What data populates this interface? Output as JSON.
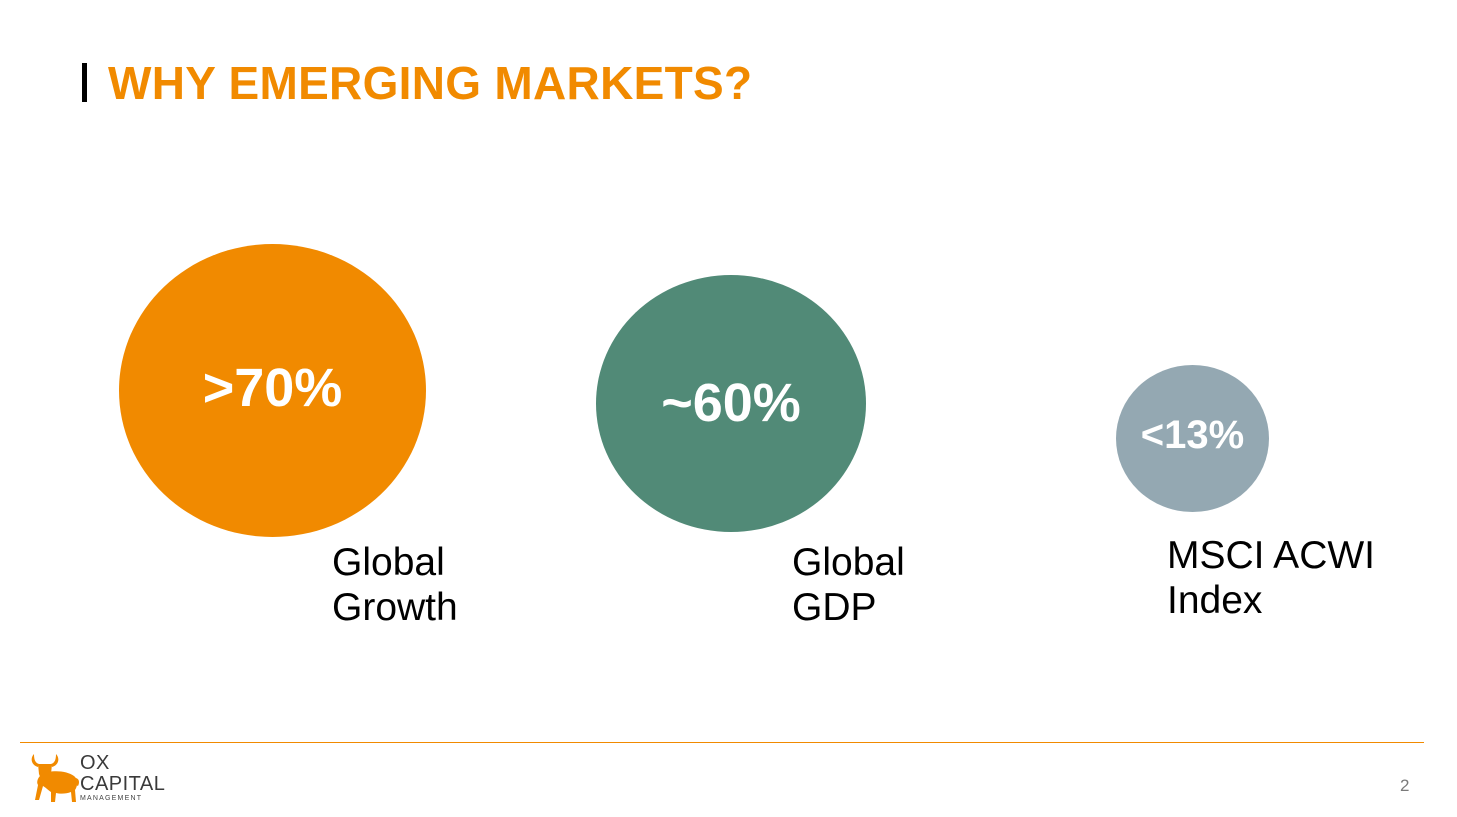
{
  "slide": {
    "title": "WHY EMERGING MARKETS?",
    "page_number": "2"
  },
  "colors": {
    "accent_orange": "#f18a00",
    "bubble_growth": "#f18a00",
    "bubble_gdp": "#518a77",
    "bubble_msci": "#94a8b2"
  },
  "stats": [
    {
      "value": ">70%",
      "label_line1": "Global",
      "label_line2": "Growth"
    },
    {
      "value": "~60%",
      "label_line1": "Global",
      "label_line2": "GDP"
    },
    {
      "value": "<13%",
      "label_line1": "MSCI ACWI",
      "label_line2": "Index"
    }
  ],
  "logo": {
    "line1": "OX",
    "line2": "CAPITAL",
    "line3": "MANAGEMENT",
    "icon": "bull-icon"
  }
}
